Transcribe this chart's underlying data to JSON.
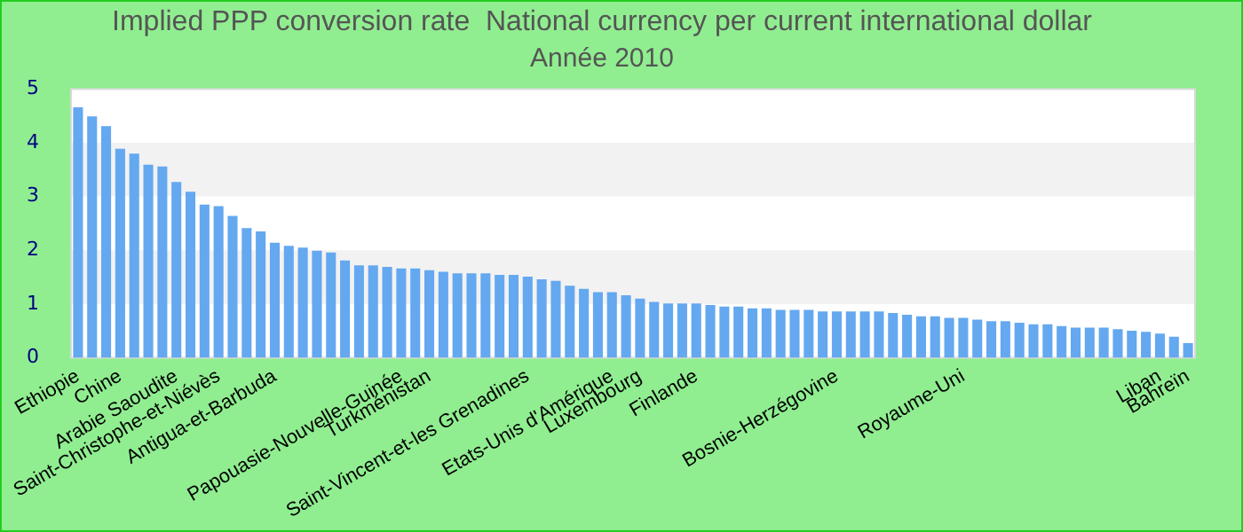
{
  "chart_data": {
    "type": "bar",
    "title": "Implied PPP conversion rate  National currency per current international dollar",
    "subtitle": "Année 2010",
    "categories": [
      "Ethiopie",
      null,
      null,
      "Chine",
      null,
      null,
      null,
      "Arabie Saoudite",
      null,
      null,
      "Saint-Christophe-et-Niévès",
      null,
      null,
      null,
      "Antigua-et-Barbuda",
      null,
      null,
      null,
      null,
      null,
      null,
      null,
      null,
      "Papouasie-Nouvelle-Guinée",
      null,
      "Turkménistan",
      null,
      null,
      null,
      null,
      null,
      null,
      "Saint-Vincent-et-les Grenadines",
      null,
      null,
      null,
      null,
      null,
      "Etats-Unis d'Amérique",
      null,
      "Luxembourg",
      null,
      null,
      null,
      "Finlande",
      null,
      null,
      null,
      null,
      null,
      null,
      null,
      null,
      null,
      "Bosnie-Herzégovine",
      null,
      null,
      null,
      null,
      null,
      null,
      null,
      null,
      "Royaume-Uni",
      null,
      null,
      null,
      null,
      null,
      null,
      null,
      null,
      null,
      null,
      null,
      null,
      null,
      "Liban",
      null,
      "Bahreïn"
    ],
    "values": [
      4.66,
      4.49,
      4.31,
      3.89,
      3.8,
      3.59,
      3.56,
      3.27,
      3.09,
      2.85,
      2.82,
      2.64,
      2.41,
      2.35,
      2.14,
      2.08,
      2.05,
      1.99,
      1.96,
      1.81,
      1.72,
      1.72,
      1.69,
      1.66,
      1.66,
      1.63,
      1.6,
      1.57,
      1.57,
      1.57,
      1.54,
      1.54,
      1.51,
      1.46,
      1.43,
      1.34,
      1.28,
      1.22,
      1.22,
      1.16,
      1.1,
      1.04,
      1.01,
      1.01,
      1.01,
      0.98,
      0.95,
      0.95,
      0.92,
      0.92,
      0.89,
      0.89,
      0.89,
      0.86,
      0.86,
      0.86,
      0.86,
      0.86,
      0.83,
      0.8,
      0.77,
      0.77,
      0.74,
      0.74,
      0.71,
      0.68,
      0.68,
      0.65,
      0.62,
      0.62,
      0.59,
      0.56,
      0.56,
      0.56,
      0.53,
      0.5,
      0.48,
      0.45,
      0.39,
      0.27
    ],
    "color": "#64a8f0",
    "ylim": [
      0,
      5
    ],
    "yticks": [
      0,
      1,
      2,
      3,
      4,
      5
    ],
    "legend": false
  }
}
